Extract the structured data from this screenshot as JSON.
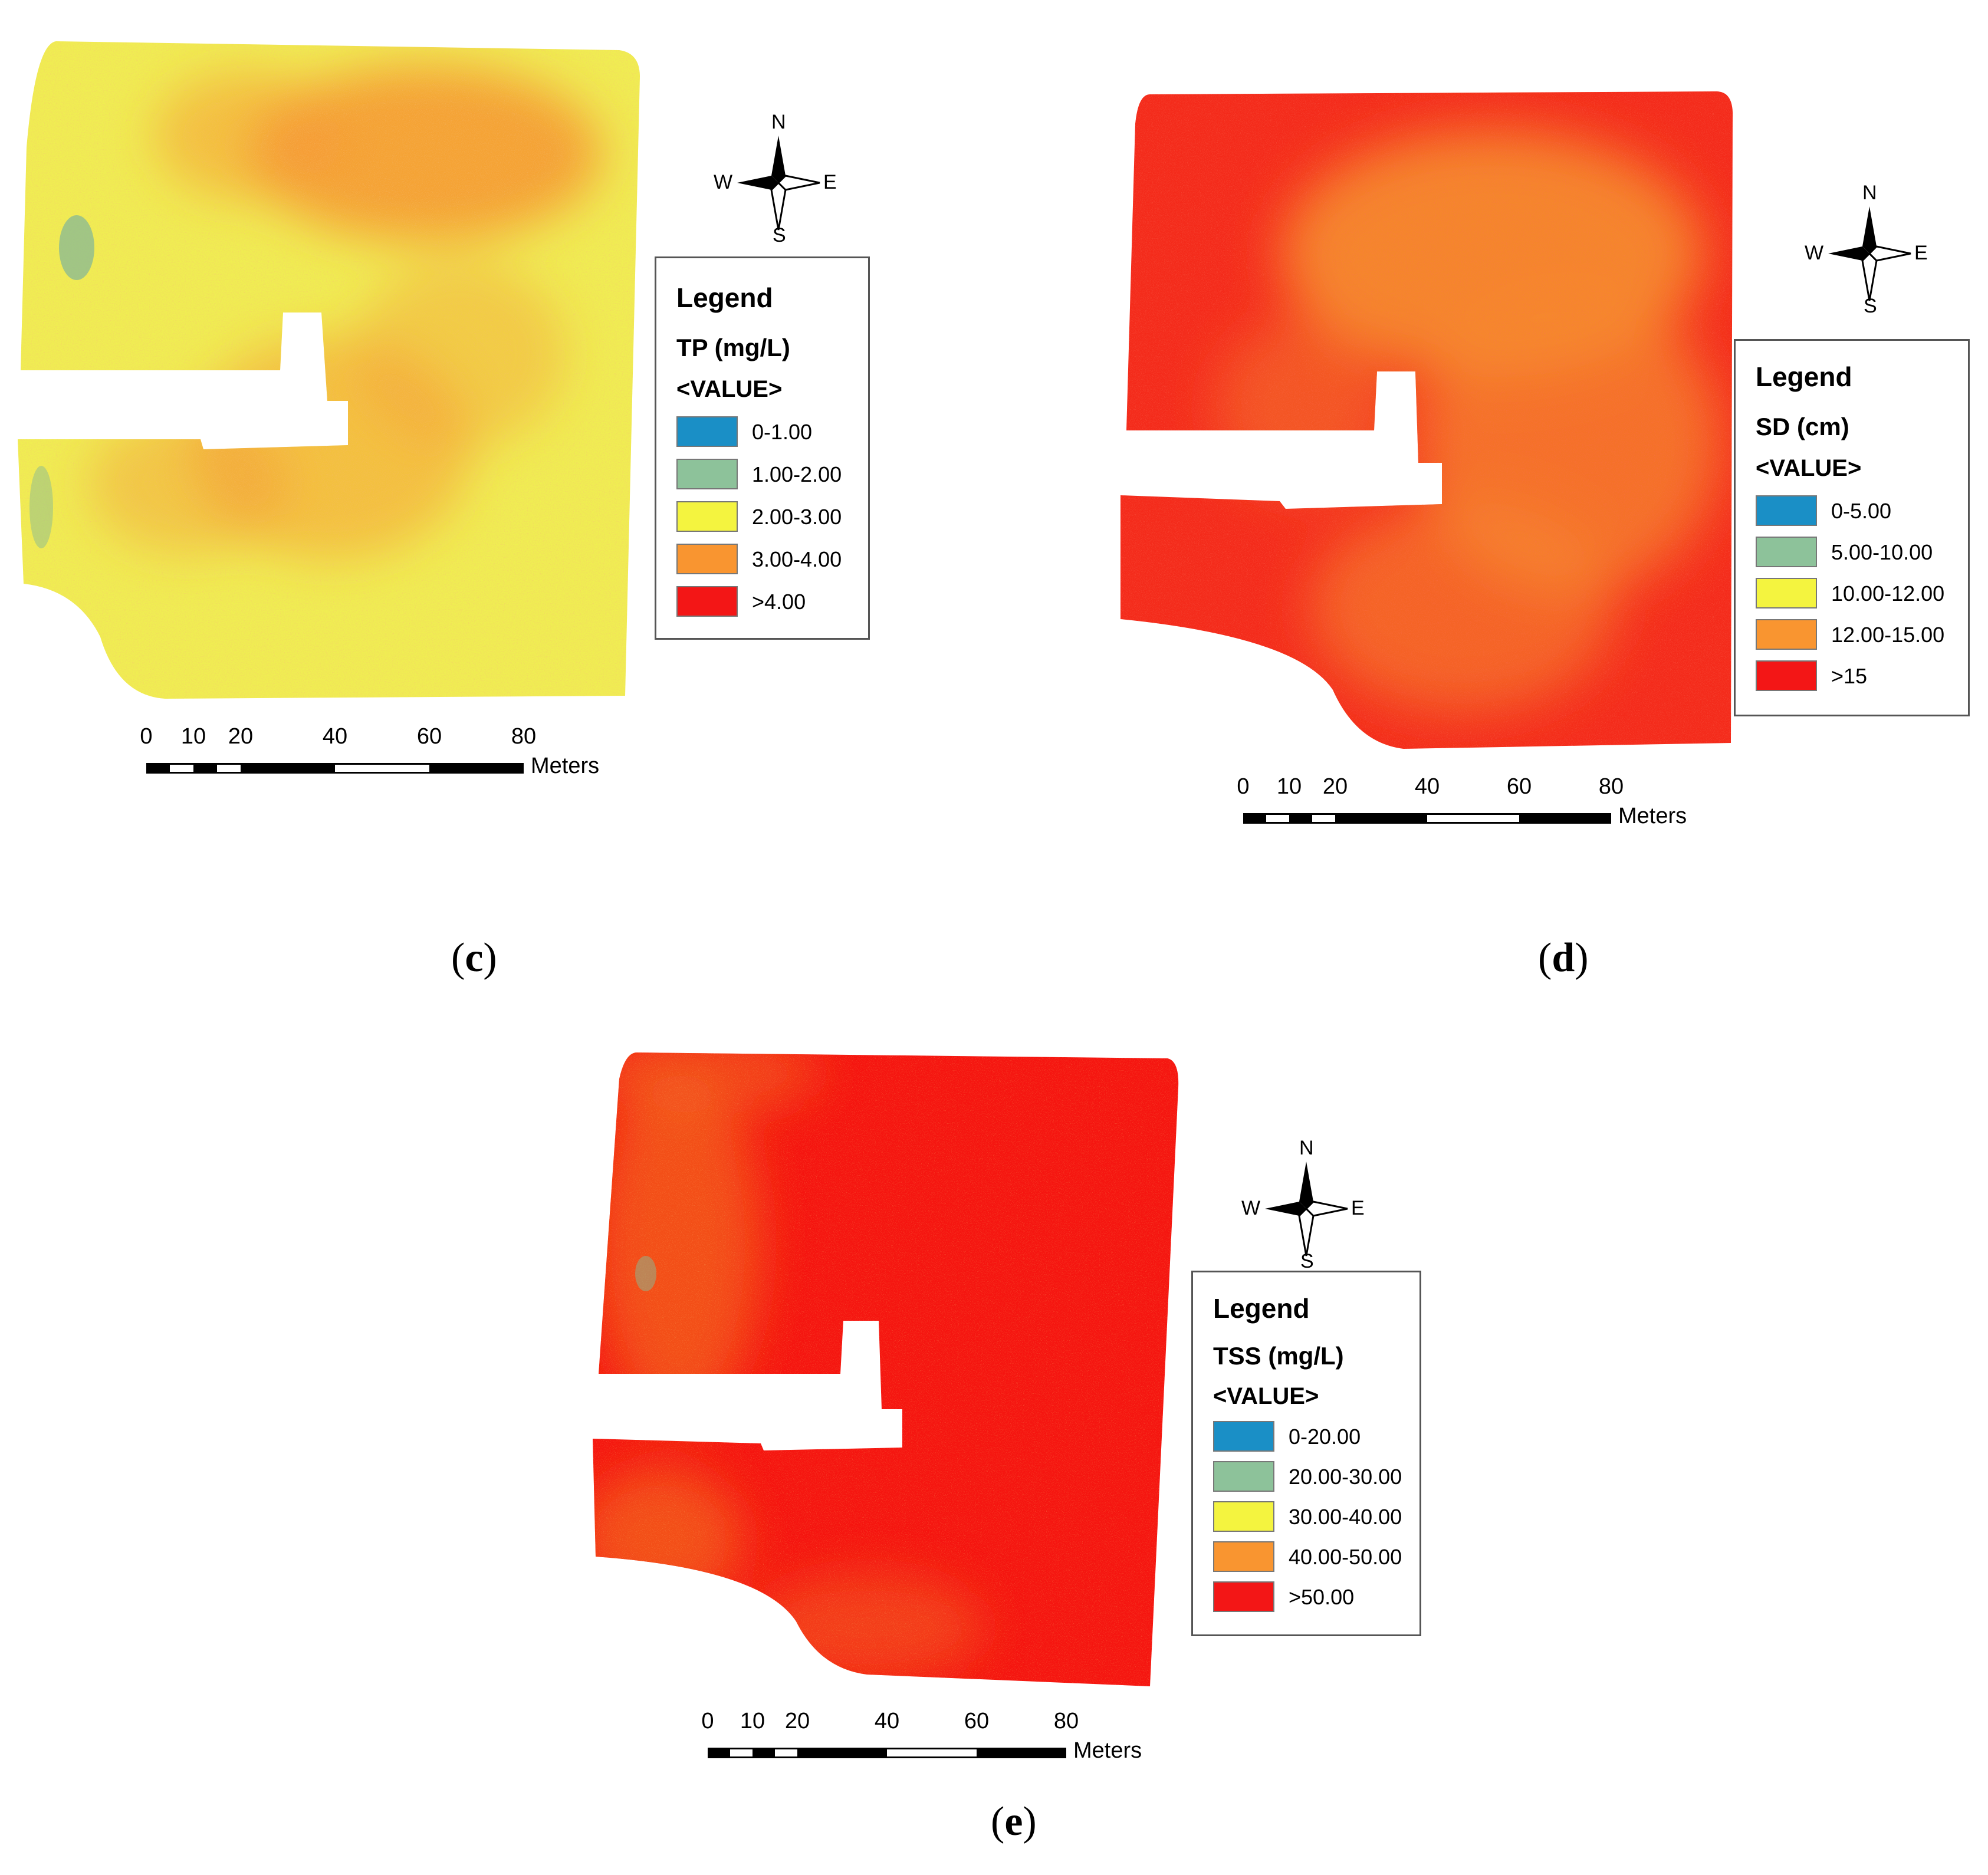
{
  "panels": [
    {
      "id": "c",
      "caption_letter": "c",
      "legend": {
        "title": "Legend",
        "variable": "TP (mg/L)",
        "value_label": "<VALUE>",
        "classes": [
          {
            "label": "0-1.00",
            "color": "#1a8fc6"
          },
          {
            "label": "1.00-2.00",
            "color": "#8dc29a"
          },
          {
            "label": "2.00-3.00",
            "color": "#f4f43f"
          },
          {
            "label": "3.00-4.00",
            "color": "#f99530"
          },
          {
            "label": ">4.00",
            "color": "#f31616"
          }
        ]
      },
      "map_colors": {
        "base": "#f0ee52",
        "blotch": "#f59a32",
        "speckle": "#eb7d2d"
      },
      "compass": {
        "n": "N",
        "s": "S",
        "e": "E",
        "w": "W"
      },
      "scalebar": {
        "ticks": [
          "0",
          "10",
          "20",
          "40",
          "60",
          "80"
        ],
        "unit": "Meters"
      }
    },
    {
      "id": "d",
      "caption_letter": "d",
      "legend": {
        "title": "Legend",
        "variable": "SD (cm)",
        "value_label": "<VALUE>",
        "classes": [
          {
            "label": "0-5.00",
            "color": "#1a8fc6"
          },
          {
            "label": "5.00-10.00",
            "color": "#8dc29a"
          },
          {
            "label": "10.00-12.00",
            "color": "#f4f43f"
          },
          {
            "label": "12.00-15.00",
            "color": "#f99530"
          },
          {
            "label": ">15",
            "color": "#f31616"
          }
        ]
      },
      "map_colors": {
        "base": "#f42a1a",
        "blotch": "#f58a2c",
        "speckle": "#f36a22"
      },
      "compass": {
        "n": "N",
        "s": "S",
        "e": "E",
        "w": "W"
      },
      "scalebar": {
        "ticks": [
          "0",
          "10",
          "20",
          "40",
          "60",
          "80"
        ],
        "unit": "Meters"
      }
    },
    {
      "id": "e",
      "caption_letter": "e",
      "legend": {
        "title": "Legend",
        "variable": "TSS (mg/L)",
        "value_label": "<VALUE>",
        "classes": [
          {
            "label": "0-20.00",
            "color": "#1a8fc6"
          },
          {
            "label": "20.00-30.00",
            "color": "#8dc29a"
          },
          {
            "label": "30.00-40.00",
            "color": "#f4f43f"
          },
          {
            "label": "40.00-50.00",
            "color": "#f99530"
          },
          {
            "label": ">50.00",
            "color": "#f31616"
          }
        ]
      },
      "map_colors": {
        "base": "#f51510",
        "blotch": "#f2661f",
        "speckle": "#f7a52e"
      },
      "compass": {
        "n": "N",
        "s": "S",
        "e": "E",
        "w": "W"
      },
      "scalebar": {
        "ticks": [
          "0",
          "10",
          "20",
          "40",
          "60",
          "80"
        ],
        "unit": "Meters"
      }
    }
  ]
}
